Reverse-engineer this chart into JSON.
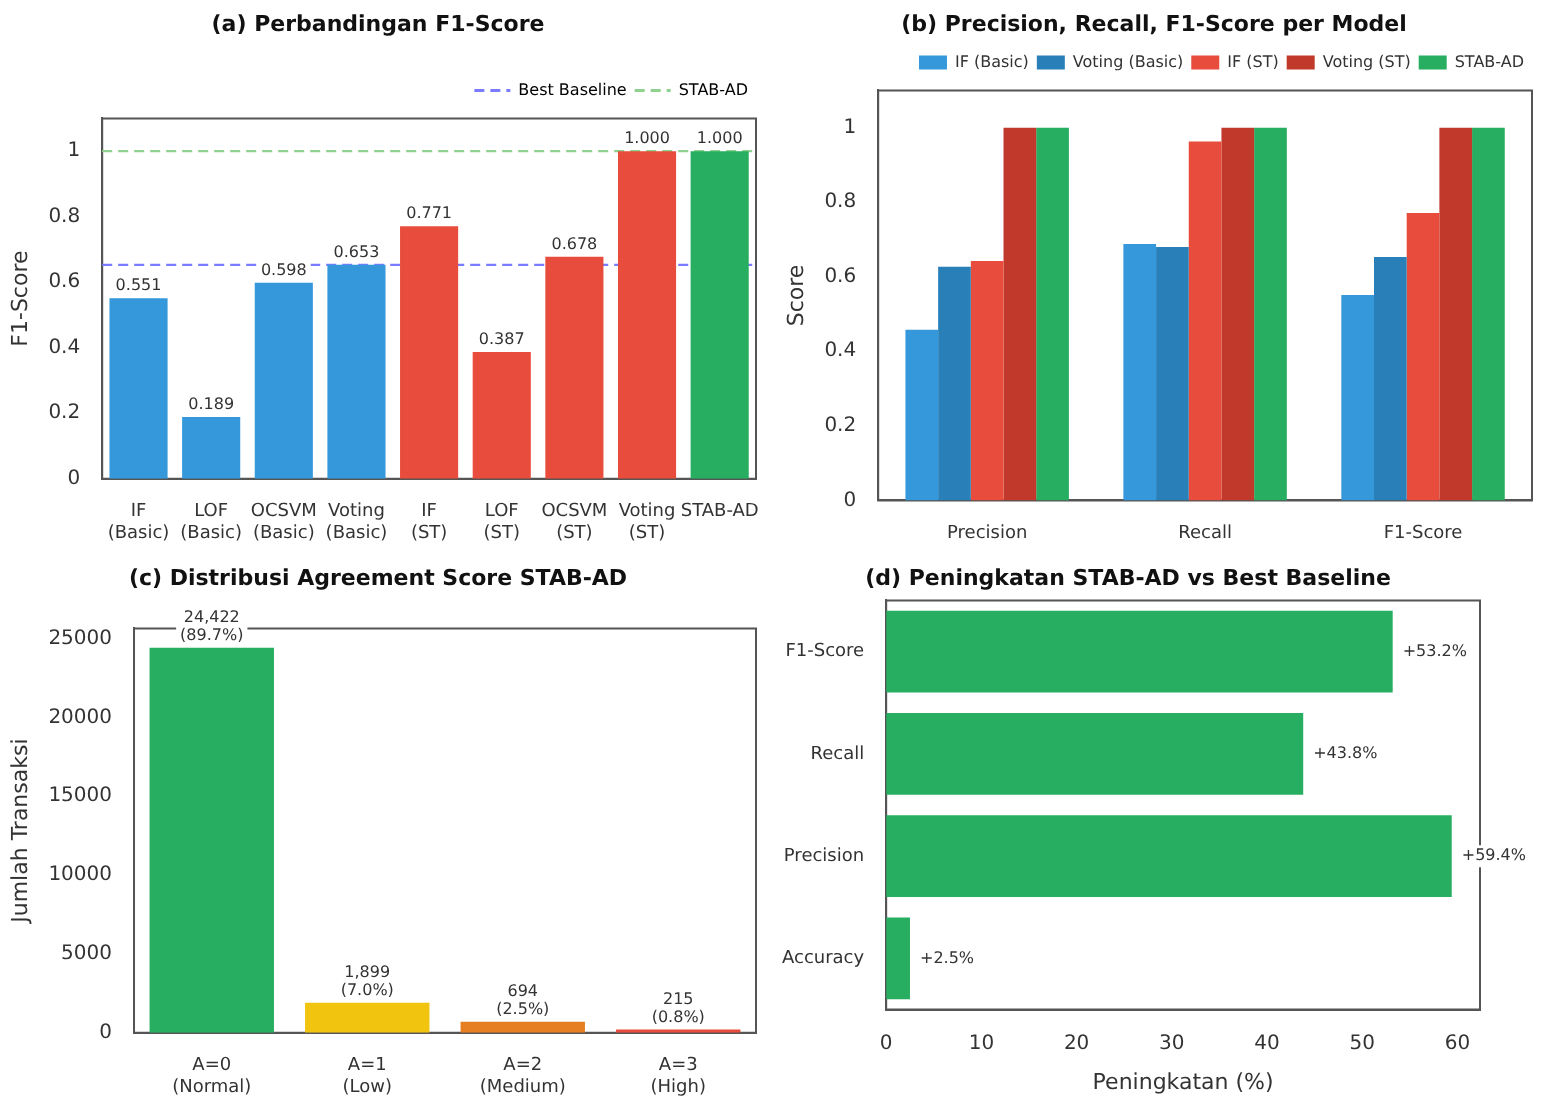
{
  "chart_data": [
    {
      "type": "bar",
      "title": "(a) Perbandingan F1-Score",
      "ylabel": "F1-Score",
      "categories": [
        "IF\n(Basic)",
        "LOF\n(Basic)",
        "OCSVM\n(Basic)",
        "Voting\n(Basic)",
        "IF\n(ST)",
        "LOF\n(ST)",
        "OCSVM\n(ST)",
        "Voting\n(ST)",
        "STAB-AD"
      ],
      "values": [
        0.551,
        0.189,
        0.598,
        0.653,
        0.771,
        0.387,
        0.678,
        1.0,
        1.0
      ],
      "colors": [
        "#3498db",
        "#3498db",
        "#3498db",
        "#3498db",
        "#e74c3c",
        "#e74c3c",
        "#e74c3c",
        "#e74c3c",
        "#27ae60"
      ],
      "value_labels": [
        "0.551",
        "0.189",
        "0.598",
        "0.653",
        "0.771",
        "0.387",
        "0.678",
        "1.000",
        "1.000"
      ],
      "ref_lines": [
        {
          "axis": "y",
          "value": 0.653,
          "label": "Best Baseline",
          "color": "#7b7bff",
          "line_style": "dashed"
        },
        {
          "axis": "y",
          "value": 1.0,
          "label": "STAB-AD",
          "color": "#8fd18f",
          "line_style": "dashed"
        }
      ],
      "ylim": [
        0,
        1.1
      ],
      "yticks": [
        0,
        0.2,
        0.4,
        0.6,
        0.8,
        1.0
      ],
      "legend": "top right",
      "grid": false
    },
    {
      "type": "bar",
      "title": "(b) Precision, Recall, F1-Score per Model",
      "ylabel": "Score",
      "categories": [
        "Precision",
        "Recall",
        "F1-Score"
      ],
      "series": [
        {
          "name": "IF (Basic)",
          "color": "#3498db",
          "values": [
            0.458,
            0.688,
            0.551
          ]
        },
        {
          "name": "Voting (Basic)",
          "color": "#2980b9",
          "values": [
            0.627,
            0.68,
            0.653
          ]
        },
        {
          "name": "IF (ST)",
          "color": "#e74c3c",
          "values": [
            0.642,
            0.963,
            0.771
          ]
        },
        {
          "name": "Voting (ST)",
          "color": "#c0392b",
          "values": [
            1.0,
            1.0,
            1.0
          ]
        },
        {
          "name": "STAB-AD",
          "color": "#27ae60",
          "values": [
            1.0,
            1.0,
            1.0
          ]
        }
      ],
      "ylim": [
        0,
        1.1
      ],
      "yticks": [
        0,
        0.2,
        0.4,
        0.6,
        0.8,
        1.0
      ],
      "legend": "top right",
      "grid": false
    },
    {
      "type": "bar",
      "title": "(c) Distribusi Agreement Score STAB-AD",
      "ylabel": "Jumlah Transaksi",
      "categories": [
        "A=0\n(Normal)",
        "A=1\n(Low)",
        "A=2\n(Medium)",
        "A=3\n(High)"
      ],
      "values": [
        24422,
        1899,
        694,
        215
      ],
      "colors": [
        "#27ae60",
        "#f1c40f",
        "#e67e22",
        "#e74c3c"
      ],
      "value_labels": [
        "24,422\n(89.7%)",
        "1,899\n(7.0%)",
        "694\n(2.5%)",
        "215\n(0.8%)"
      ],
      "ylim": [
        0,
        25643
      ],
      "yticks": [
        0,
        5000,
        10000,
        15000,
        20000,
        25000
      ],
      "grid": false
    },
    {
      "type": "bar",
      "orientation": "horizontal",
      "title": "(d) Peningkatan STAB-AD vs Best Baseline",
      "xlabel": "Peningkatan (%)",
      "categories": [
        "F1-Score",
        "Recall",
        "Precision",
        "Accuracy"
      ],
      "values": [
        53.2,
        43.8,
        59.4,
        2.5
      ],
      "colors": [
        "#27ae60",
        "#27ae60",
        "#27ae60",
        "#27ae60"
      ],
      "value_labels": [
        "+53.2%",
        "+43.8%",
        "+59.4%",
        "+2.5%"
      ],
      "xlim": [
        0,
        62.37
      ],
      "xticks": [
        0,
        10,
        20,
        30,
        40,
        50,
        60
      ],
      "grid": false
    }
  ]
}
